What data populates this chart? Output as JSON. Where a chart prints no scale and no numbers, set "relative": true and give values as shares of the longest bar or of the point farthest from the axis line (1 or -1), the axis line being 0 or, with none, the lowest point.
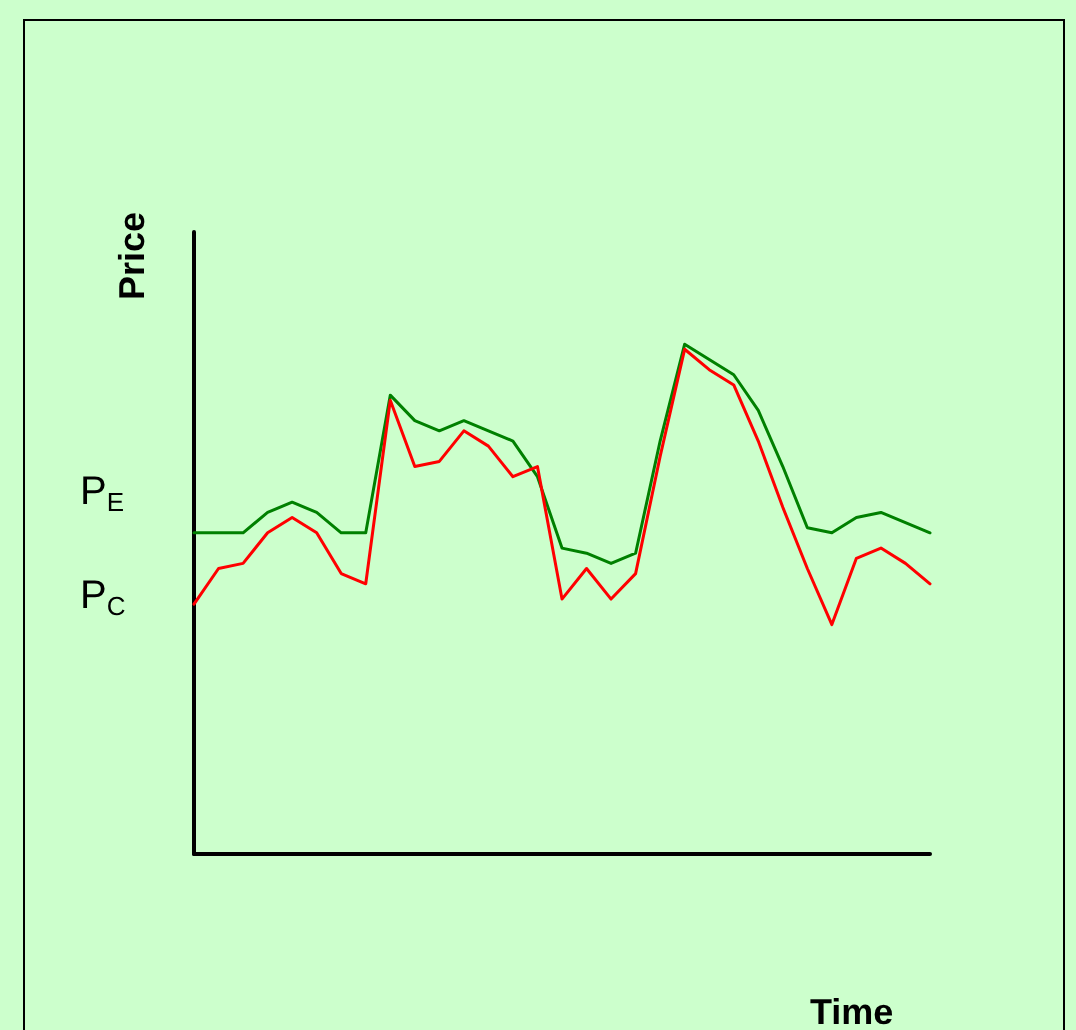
{
  "chart_data": {
    "type": "line",
    "relative": true,
    "xlabel": "Time",
    "ylabel": "Price",
    "categories": [
      null,
      null,
      null,
      null,
      null,
      null,
      null,
      null,
      null,
      null,
      null,
      null,
      null,
      null,
      null,
      null,
      null,
      null,
      null,
      null,
      null,
      null,
      null,
      null,
      null,
      null,
      null,
      null,
      null,
      null,
      null
    ],
    "series": [
      {
        "color": "#008000",
        "values": [
          0.63,
          0.63,
          0.63,
          0.67,
          0.69,
          0.67,
          0.63,
          0.63,
          0.9,
          0.85,
          0.83,
          0.85,
          0.83,
          0.81,
          0.74,
          0.6,
          0.59,
          0.57,
          0.59,
          0.81,
          1.0,
          0.97,
          0.94,
          0.87,
          0.76,
          0.64,
          0.63,
          0.66,
          0.67,
          0.65,
          0.63
        ]
      },
      {
        "color": "#ff0000",
        "values": [
          0.49,
          0.56,
          0.57,
          0.63,
          0.66,
          0.63,
          0.55,
          0.53,
          0.89,
          0.76,
          0.77,
          0.83,
          0.8,
          0.74,
          0.76,
          0.5,
          0.56,
          0.5,
          0.55,
          0.78,
          0.99,
          0.95,
          0.92,
          0.81,
          0.68,
          0.56,
          0.45,
          0.58,
          0.6,
          0.57,
          0.53
        ]
      }
    ],
    "annotations": [
      "P$_{E}$",
      "P$_{C}$"
    ],
    "grid": false,
    "marker": "none",
    "line_style": "solid"
  }
}
